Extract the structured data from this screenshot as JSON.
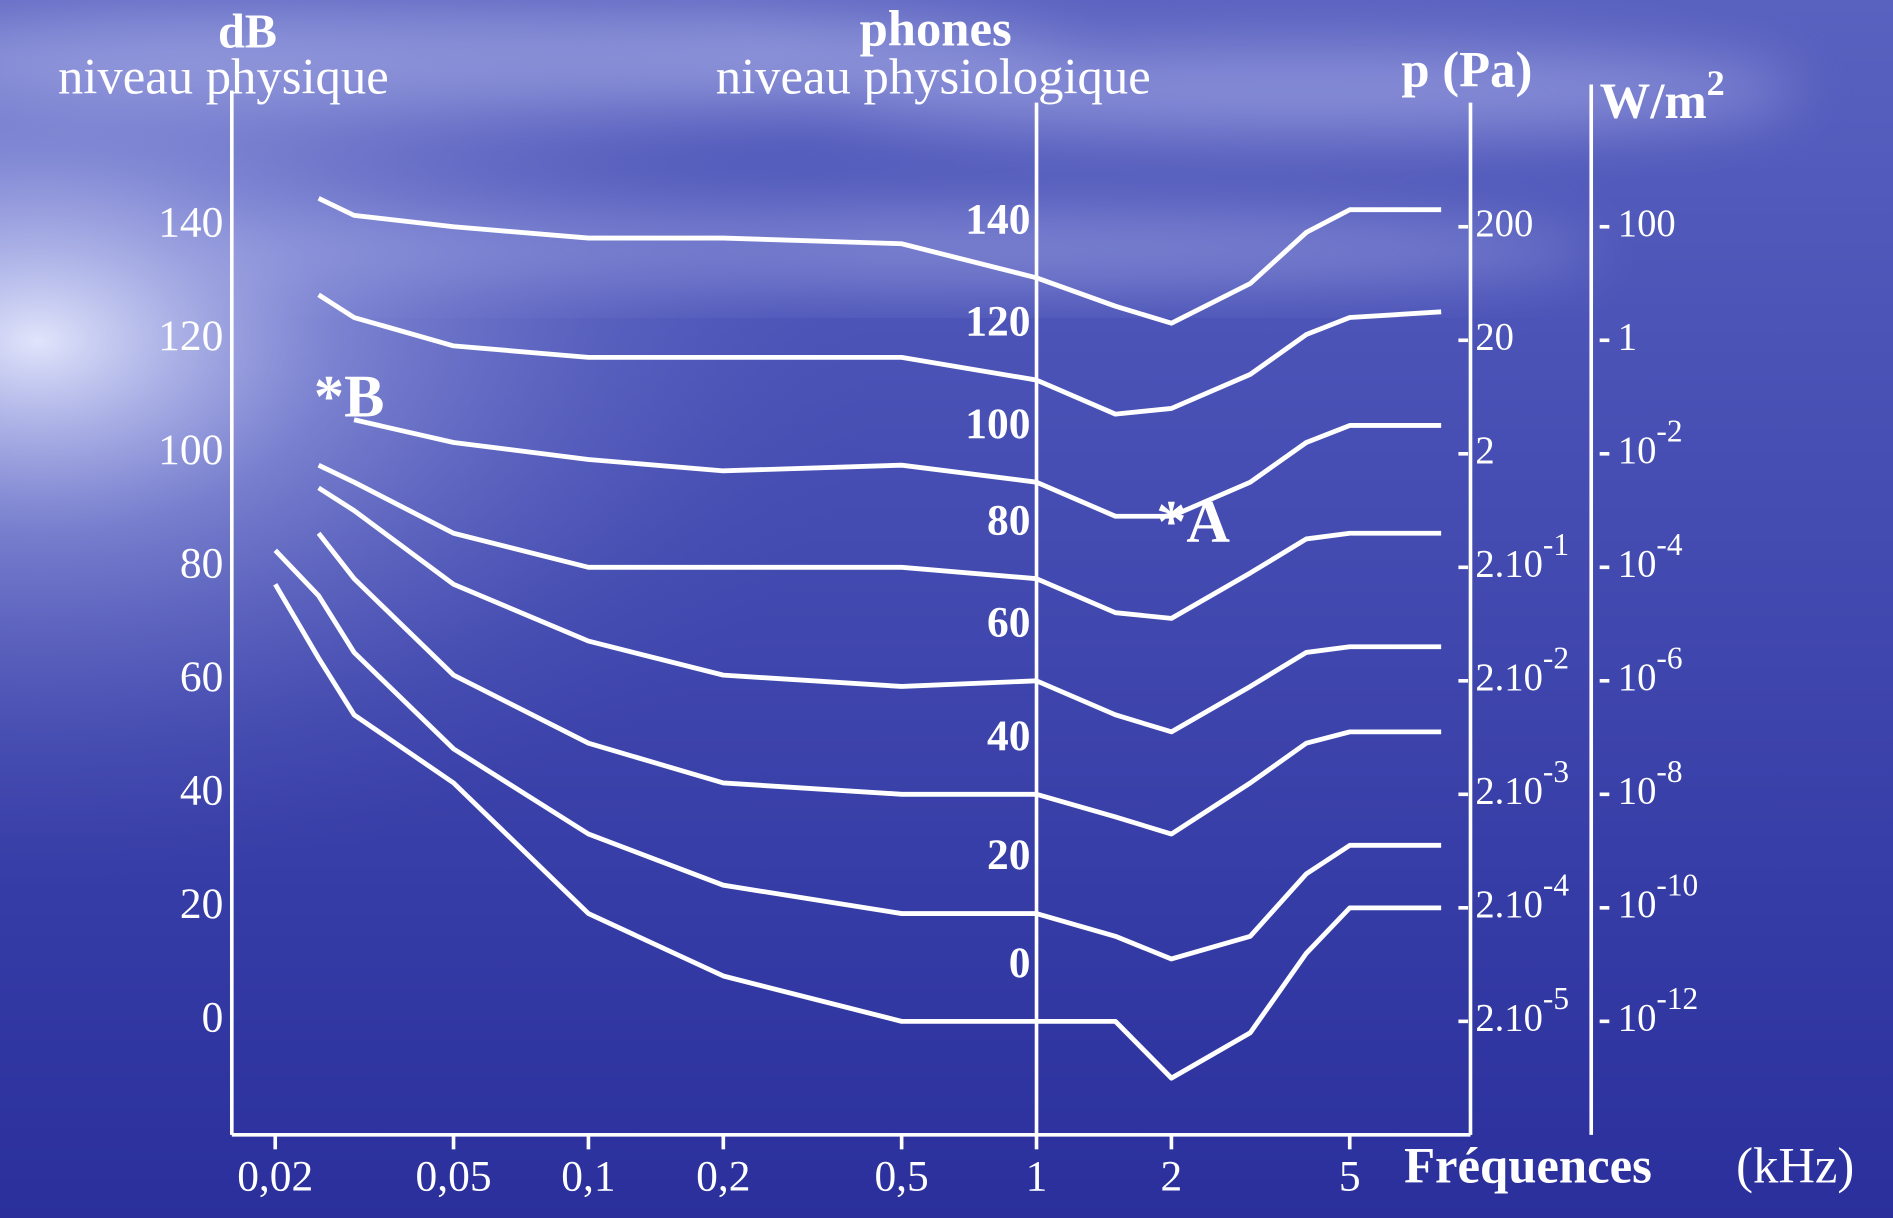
{
  "chart_data": {
    "type": "line",
    "ylabel": "dB",
    "ylabel_subtitle": "niveau physique",
    "phon_label": "phones",
    "phon_subtitle": "niveau physiologique",
    "y2label": "p (Pa)",
    "y3label": {
      "label": "W/m",
      "exponent": "2"
    },
    "xlabel": "Fréquences",
    "xlabel_unit": "(kHz)",
    "xscale": "log",
    "xlim": [
      0.016,
      9.3
    ],
    "xticks": [
      {
        "value": 0.02,
        "label": "0,02"
      },
      {
        "value": 0.05,
        "label": "0,05"
      },
      {
        "value": 0.1,
        "label": "0,1"
      },
      {
        "value": 0.2,
        "label": "0,2"
      },
      {
        "value": 0.5,
        "label": "0,5"
      },
      1,
      2,
      5
    ],
    "ylim": [
      -20,
      164
    ],
    "yticks": [
      0,
      20,
      40,
      60,
      80,
      100,
      120,
      140
    ],
    "y2scale": "log",
    "y2lim": [
      2e-06,
      3170
    ],
    "y2ticks": [
      {
        "value": 200,
        "label": "200"
      },
      {
        "value": 20,
        "label": "20"
      },
      {
        "value": 2,
        "label": "2"
      },
      {
        "value": 0.2,
        "label": "2.10",
        "exponent": "-1"
      },
      {
        "value": 0.02,
        "label": "2.10",
        "exponent": "-2"
      },
      {
        "value": 0.002,
        "label": "2.10",
        "exponent": "-3"
      },
      {
        "value": 0.0002,
        "label": "2.10",
        "exponent": "-4"
      },
      {
        "value": 2e-05,
        "label": "2.10",
        "exponent": "-5"
      }
    ],
    "y3scale": "log",
    "y3lim": [
      1e-14,
      25119
    ],
    "y3ticks": [
      {
        "value": 100,
        "label": "100"
      },
      {
        "value": 1,
        "label": "1"
      },
      {
        "value": 0.01,
        "label": "10",
        "exponent": "-2"
      },
      {
        "value": 0.0001,
        "label": "10",
        "exponent": "-4"
      },
      {
        "value": 1e-06,
        "label": "10",
        "exponent": "-6"
      },
      {
        "value": 1e-08,
        "label": "10",
        "exponent": "-8"
      },
      {
        "value": 1e-10,
        "label": "10",
        "exponent": "-10"
      },
      {
        "value": 1e-12,
        "label": "10",
        "exponent": "-12"
      }
    ],
    "phon_axis_at": 1,
    "x": [
      0.02,
      0.025,
      0.03,
      0.05,
      0.1,
      0.2,
      0.5,
      1,
      1.5,
      2,
      3,
      4,
      5,
      8
    ],
    "series": [
      {
        "name": "140",
        "color": "#ffffff",
        "values": [
          null,
          145,
          142,
          140,
          138,
          138,
          137,
          131,
          126,
          123,
          130,
          139,
          143,
          143
        ]
      },
      {
        "name": "120",
        "color": "#ffffff",
        "values": [
          null,
          128,
          124,
          119,
          117,
          117,
          117,
          113,
          107,
          108,
          114,
          121,
          124,
          125
        ]
      },
      {
        "name": "100",
        "color": "#ffffff",
        "values": [
          null,
          null,
          106,
          102,
          99,
          97,
          98,
          95,
          89,
          89,
          95,
          102,
          105,
          105
        ]
      },
      {
        "name": "80",
        "color": "#ffffff",
        "values": [
          null,
          98,
          95,
          86,
          80,
          80,
          80,
          78,
          72,
          71,
          79,
          85,
          86,
          86
        ]
      },
      {
        "name": "60",
        "color": "#ffffff",
        "values": [
          null,
          94,
          90,
          77,
          67,
          61,
          59,
          60,
          54,
          51,
          59,
          65,
          66,
          66
        ]
      },
      {
        "name": "40",
        "color": "#ffffff",
        "values": [
          null,
          86,
          78,
          61,
          49,
          42,
          40,
          40,
          36,
          33,
          42,
          49,
          51,
          51
        ]
      },
      {
        "name": "20",
        "color": "#ffffff",
        "values": [
          83,
          75,
          65,
          48,
          33,
          24,
          19,
          19,
          15,
          11,
          15,
          26,
          31,
          31
        ]
      },
      {
        "name": "0",
        "color": "#ffffff",
        "values": [
          77,
          64,
          54,
          42,
          19,
          8,
          0,
          0,
          0,
          -10,
          -2,
          12,
          20,
          20
        ]
      }
    ],
    "annotations": [
      {
        "text": "*A",
        "x": 1.85,
        "y": 87
      },
      {
        "text": "*B",
        "x": 0.0244,
        "y": 109
      }
    ]
  }
}
